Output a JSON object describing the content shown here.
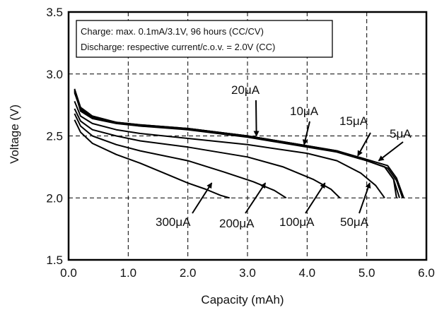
{
  "chart_data": {
    "type": "line",
    "xlabel": "Capacity (mAh)",
    "ylabel": "Voltage (V)",
    "xlim": [
      0,
      6
    ],
    "ylim": [
      1.5,
      3.5
    ],
    "x_ticks": [
      "0.0",
      "1.0",
      "2.0",
      "3.0",
      "4.0",
      "5.0",
      "6.0"
    ],
    "y_ticks": [
      "1.5",
      "2.0",
      "2.5",
      "3.0",
      "3.5"
    ],
    "grid": true,
    "annotation_box": {
      "lines": [
        "Charge: max. 0.1mA/3.1V, 96 hours (CC/CV)",
        "Discharge: respective current/c.o.v. = 2.0V (CC)"
      ]
    },
    "callouts": [
      {
        "label": "20μA",
        "target": [
          3.15,
          2.5
        ],
        "arrow": true
      },
      {
        "label": "10μA",
        "target": [
          3.95,
          2.43
        ],
        "arrow": true
      },
      {
        "label": "15μA",
        "target": [
          4.85,
          2.34
        ],
        "arrow": true
      },
      {
        "label": "5μA",
        "target": [
          5.2,
          2.3
        ],
        "arrow": true
      },
      {
        "label": "300μA",
        "target": [
          2.4,
          2.12
        ],
        "arrow": true
      },
      {
        "label": "200μA",
        "target": [
          3.3,
          2.12
        ],
        "arrow": true
      },
      {
        "label": "100μA",
        "target": [
          4.3,
          2.12
        ],
        "arrow": true
      },
      {
        "label": "50μA",
        "target": [
          5.05,
          2.12
        ],
        "arrow": true
      }
    ],
    "series": [
      {
        "points": [
          [
            0.1,
            2.87
          ],
          [
            0.2,
            2.7
          ],
          [
            0.4,
            2.64
          ],
          [
            0.8,
            2.6
          ],
          [
            1.2,
            2.58
          ],
          [
            2.0,
            2.56
          ],
          [
            2.5,
            2.53
          ],
          [
            3.0,
            2.5
          ],
          [
            3.5,
            2.46
          ],
          [
            4.0,
            2.42
          ],
          [
            4.5,
            2.38
          ],
          [
            5.0,
            2.3
          ],
          [
            5.3,
            2.25
          ],
          [
            5.45,
            2.15
          ],
          [
            5.55,
            2.0
          ]
        ]
      },
      {
        "points": [
          [
            0.1,
            2.86
          ],
          [
            0.2,
            2.72
          ],
          [
            0.4,
            2.65
          ],
          [
            0.8,
            2.61
          ],
          [
            1.2,
            2.59
          ],
          [
            2.0,
            2.56
          ],
          [
            2.5,
            2.53
          ],
          [
            3.0,
            2.5
          ],
          [
            3.5,
            2.46
          ],
          [
            4.0,
            2.42
          ],
          [
            4.5,
            2.37
          ],
          [
            5.0,
            2.3
          ],
          [
            5.35,
            2.24
          ],
          [
            5.5,
            2.14
          ],
          [
            5.6,
            2.0
          ]
        ]
      },
      {
        "points": [
          [
            0.1,
            2.88
          ],
          [
            0.2,
            2.73
          ],
          [
            0.4,
            2.66
          ],
          [
            0.8,
            2.61
          ],
          [
            1.2,
            2.59
          ],
          [
            2.0,
            2.56
          ],
          [
            2.5,
            2.53
          ],
          [
            3.0,
            2.5
          ],
          [
            3.5,
            2.46
          ],
          [
            4.0,
            2.42
          ],
          [
            4.5,
            2.38
          ],
          [
            5.0,
            2.31
          ],
          [
            5.35,
            2.26
          ],
          [
            5.5,
            2.16
          ],
          [
            5.62,
            2.0
          ]
        ]
      },
      {
        "points": [
          [
            0.1,
            2.85
          ],
          [
            0.2,
            2.71
          ],
          [
            0.4,
            2.65
          ],
          [
            0.8,
            2.61
          ],
          [
            1.2,
            2.58
          ],
          [
            2.0,
            2.55
          ],
          [
            2.5,
            2.52
          ],
          [
            3.0,
            2.49
          ],
          [
            3.5,
            2.45
          ],
          [
            4.0,
            2.41
          ],
          [
            4.5,
            2.37
          ],
          [
            5.0,
            2.3
          ],
          [
            5.3,
            2.25
          ],
          [
            5.45,
            2.15
          ],
          [
            5.5,
            2.0
          ]
        ]
      },
      {
        "points": [
          [
            0.1,
            2.78
          ],
          [
            0.2,
            2.66
          ],
          [
            0.4,
            2.6
          ],
          [
            0.8,
            2.55
          ],
          [
            1.2,
            2.52
          ],
          [
            2.0,
            2.48
          ],
          [
            3.0,
            2.43
          ],
          [
            4.0,
            2.36
          ],
          [
            4.5,
            2.3
          ],
          [
            4.9,
            2.2
          ],
          [
            5.15,
            2.1
          ],
          [
            5.3,
            2.0
          ]
        ]
      },
      {
        "points": [
          [
            0.1,
            2.72
          ],
          [
            0.2,
            2.62
          ],
          [
            0.4,
            2.55
          ],
          [
            0.8,
            2.5
          ],
          [
            1.2,
            2.46
          ],
          [
            2.0,
            2.41
          ],
          [
            3.0,
            2.33
          ],
          [
            3.6,
            2.25
          ],
          [
            4.1,
            2.15
          ],
          [
            4.4,
            2.07
          ],
          [
            4.55,
            2.0
          ]
        ]
      },
      {
        "points": [
          [
            0.1,
            2.68
          ],
          [
            0.2,
            2.58
          ],
          [
            0.4,
            2.5
          ],
          [
            0.8,
            2.43
          ],
          [
            1.2,
            2.38
          ],
          [
            2.0,
            2.3
          ],
          [
            2.6,
            2.21
          ],
          [
            3.1,
            2.13
          ],
          [
            3.45,
            2.06
          ],
          [
            3.65,
            2.0
          ]
        ]
      },
      {
        "points": [
          [
            0.1,
            2.63
          ],
          [
            0.2,
            2.53
          ],
          [
            0.4,
            2.44
          ],
          [
            0.8,
            2.35
          ],
          [
            1.2,
            2.28
          ],
          [
            1.6,
            2.2
          ],
          [
            2.0,
            2.12
          ],
          [
            2.3,
            2.07
          ],
          [
            2.55,
            2.02
          ],
          [
            2.7,
            2.0
          ]
        ]
      }
    ]
  }
}
